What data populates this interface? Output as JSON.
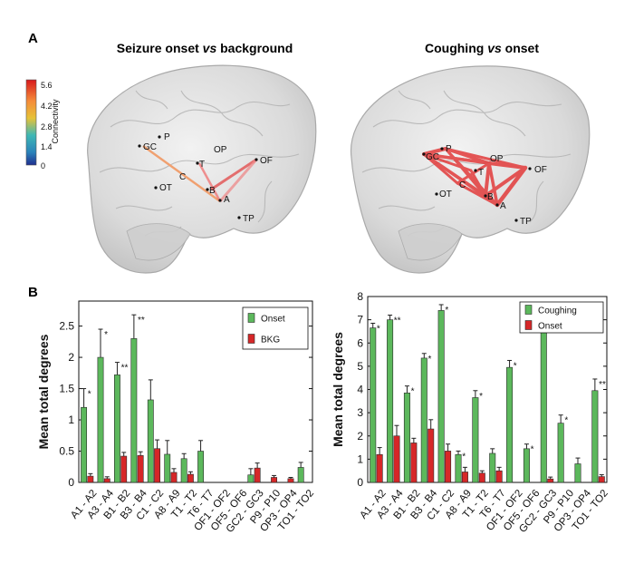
{
  "panels": {
    "a_label": "A",
    "b_label": "B"
  },
  "brains": {
    "left_title": {
      "part1": "Seizure onset ",
      "vs": "vs",
      "part2": " background"
    },
    "right_title": {
      "part1": "Coughing ",
      "vs": "vs",
      "part2": " onset"
    },
    "node_labels": [
      "GC",
      "P",
      "OP",
      "OF",
      "T",
      "C",
      "OT",
      "B",
      "A",
      "TP"
    ]
  },
  "colorbar": {
    "title": "Connectivity",
    "ticks": [
      "5.6",
      "4.2",
      "2.8",
      "1.4",
      "0"
    ],
    "colors": [
      "#d7191c",
      "#f58c3a",
      "#e6c238",
      "#3fb8b5",
      "#2b83ba",
      "#1f2f8f"
    ]
  },
  "colors": {
    "green": "#5cb85c",
    "red": "#d62728",
    "edge_left": "#f0845c",
    "edge_right": "#e63c3c"
  },
  "chart_data": [
    {
      "type": "bar",
      "ylabel": "Mean total degrees",
      "yticks": [
        "0",
        "0.5",
        "1",
        "1.5",
        "2",
        "2.5"
      ],
      "tick_values": [
        0,
        0.5,
        1,
        1.5,
        2,
        2.5
      ],
      "ylim": [
        0,
        2.9
      ],
      "categories": [
        "A1 - A2",
        "A3 - A4",
        "B1 - B2",
        "B3 - B4",
        "C1 - C2",
        "A8 - A9",
        "T1 - T2",
        "T6 - T7",
        "OF1 - OF2",
        "OF5 - OF6",
        "GC2 - GC3",
        "P9 - P10",
        "OP3 - OP4",
        "TO1 - TO2"
      ],
      "legend_position": "top-right",
      "series": [
        {
          "name": "Onset",
          "values": [
            1.2,
            2.0,
            1.72,
            2.3,
            1.32,
            0.45,
            0.38,
            0.5,
            0,
            0,
            0.12,
            0,
            0,
            0.24
          ],
          "errors": [
            0.3,
            0.45,
            0.2,
            0.38,
            0.32,
            0.22,
            0.08,
            0.17,
            0,
            0,
            0.1,
            0,
            0,
            0.08
          ]
        },
        {
          "name": "BKG",
          "values": [
            0.1,
            0.06,
            0.42,
            0.43,
            0.54,
            0.16,
            0.13,
            0,
            0,
            0,
            0.23,
            0.08,
            0.06,
            0
          ],
          "errors": [
            0.04,
            0.03,
            0.06,
            0.06,
            0.14,
            0.06,
            0.04,
            0,
            0,
            0,
            0.08,
            0.03,
            0.02,
            0
          ]
        }
      ],
      "annotations": [
        "*",
        "*",
        "**",
        "**",
        "",
        "",
        "",
        "",
        "",
        "",
        "",
        "",
        "",
        ""
      ]
    },
    {
      "type": "bar",
      "ylabel": "Mean total degrees",
      "yticks": [
        "0",
        "1",
        "2",
        "3",
        "4",
        "5",
        "6",
        "7",
        "8"
      ],
      "tick_values": [
        0,
        1,
        2,
        3,
        4,
        5,
        6,
        7,
        8
      ],
      "ylim": [
        0,
        8
      ],
      "categories": [
        "A1 - A2",
        "A3 - A4",
        "B1 - B2",
        "B3 - B4",
        "C1 - C2",
        "A8 - A9",
        "T1 - T2",
        "T6 - T7",
        "OF1 - OF2",
        "OF5 - OF6",
        "GC2 - GC3",
        "P9 - P10",
        "OP3 - OP4",
        "TO1 - TO2"
      ],
      "legend_position": "top-right",
      "series": [
        {
          "name": "Coughing",
          "values": [
            6.65,
            7.0,
            3.85,
            5.35,
            7.4,
            1.2,
            3.65,
            1.25,
            4.95,
            1.45,
            6.45,
            2.55,
            0.8,
            3.95
          ],
          "errors": [
            0.2,
            0.2,
            0.3,
            0.2,
            0.25,
            0.15,
            0.3,
            0.2,
            0.3,
            0.2,
            0.25,
            0.35,
            0.25,
            0.5
          ]
        },
        {
          "name": "Onset",
          "values": [
            1.2,
            2.0,
            1.7,
            2.3,
            1.35,
            0.45,
            0.4,
            0.5,
            0,
            0,
            0.15,
            0,
            0,
            0.25
          ],
          "errors": [
            0.3,
            0.45,
            0.2,
            0.4,
            0.3,
            0.2,
            0.1,
            0.15,
            0,
            0,
            0.08,
            0,
            0,
            0.08
          ]
        }
      ],
      "annotations": [
        "*",
        "**",
        "*",
        "*",
        "*",
        "*",
        "*",
        "",
        "*",
        "*",
        "**",
        "*",
        "",
        "**"
      ]
    }
  ]
}
